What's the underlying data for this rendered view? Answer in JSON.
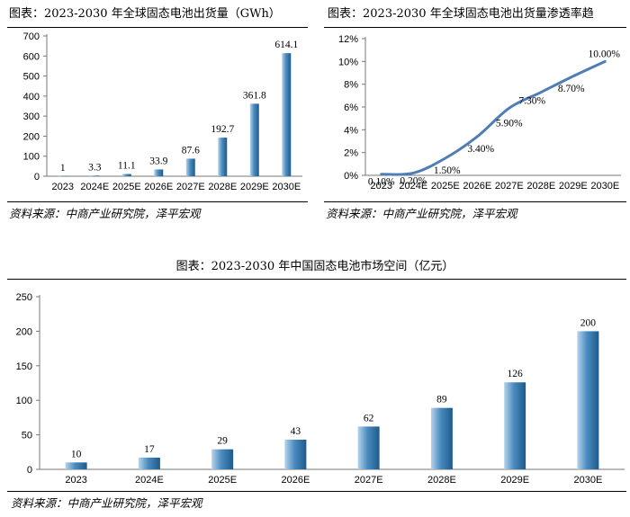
{
  "chart_data": [
    {
      "type": "bar",
      "title": "图表：2023-2030 年全球固态电池出货量（GWh）",
      "categories": [
        "2023",
        "2024E",
        "2025E",
        "2026E",
        "2027E",
        "2028E",
        "2029E",
        "2030E"
      ],
      "values": [
        1,
        3.3,
        11.1,
        33.9,
        87.6,
        192.7,
        361.8,
        614.1
      ],
      "data_labels": [
        "1",
        "3.3",
        "11.1",
        "33.9",
        "87.6",
        "192.7",
        "361.8",
        "614.1"
      ],
      "ylim": [
        0,
        700
      ],
      "yticks": [
        "0",
        "100",
        "200",
        "300",
        "400",
        "500",
        "600",
        "700"
      ],
      "xlabel": "",
      "ylabel": "",
      "bar_color": "#4a8bbf",
      "source": "资料来源：中商产业研究院，泽平宏观"
    },
    {
      "type": "line",
      "title": "图表：2023-2030 年全球固态电池出货量渗透率趋",
      "categories": [
        "2023",
        "2024E",
        "2025E",
        "2026E",
        "2027E",
        "2028E",
        "2029E",
        "2030E"
      ],
      "values": [
        0.1,
        0.2,
        1.5,
        3.4,
        5.9,
        7.3,
        8.7,
        10.0
      ],
      "data_labels": [
        "0.10%",
        "0.20%",
        "1.50%",
        "3.40%",
        "5.90%",
        "7.30%",
        "8.70%",
        "10.00%"
      ],
      "ylim": [
        0,
        12
      ],
      "yticks": [
        "0%",
        "2%",
        "4%",
        "6%",
        "8%",
        "10%",
        "12%"
      ],
      "xlabel": "",
      "ylabel": "",
      "line_color": "#4f7db5",
      "source": "资料来源：中商产业研究院，泽平宏观"
    },
    {
      "type": "bar",
      "title": "图表：2023-2030 年中国固态电池市场空间（亿元）",
      "categories": [
        "2023",
        "2024E",
        "2025E",
        "2026E",
        "2027E",
        "2028E",
        "2029E",
        "2030E"
      ],
      "values": [
        10,
        17,
        29,
        43,
        62,
        89,
        126,
        200
      ],
      "data_labels": [
        "10",
        "17",
        "29",
        "43",
        "62",
        "89",
        "126",
        "200"
      ],
      "ylim": [
        0,
        250
      ],
      "yticks": [
        "0",
        "50",
        "100",
        "150",
        "200",
        "250"
      ],
      "xlabel": "",
      "ylabel": "",
      "bar_color": "#4a8bbf",
      "source": "资料来源：中商产业研究院，泽平宏观"
    }
  ]
}
